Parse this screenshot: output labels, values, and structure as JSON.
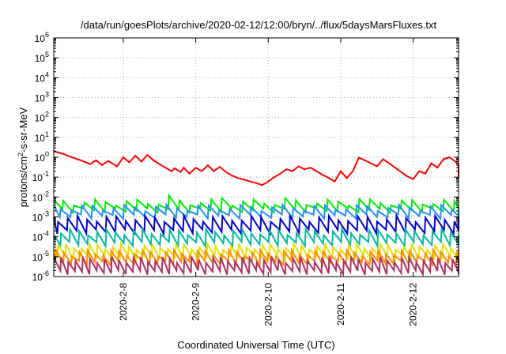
{
  "chart_data": {
    "type": "line",
    "title": "/data/run/goesPlots/archive/2020-02-12/12:00/bryn/../flux/5daysMarsFluxes.txt",
    "xlabel": "Coordinated Universal Time (UTC)",
    "ylabel": {
      "base": "protons/cm",
      "sup": "2",
      "rest": "-s-sr-MeV"
    },
    "x_range_days": [
      "2020-02-07T01:00",
      "2020-02-12T15:00"
    ],
    "x_ticks": [
      "2020-2-8",
      "2020-2-9",
      "2020-2-10",
      "2020-2-11",
      "2020-2-12"
    ],
    "x_tick_dates": [
      "2020-02-08",
      "2020-02-09",
      "2020-02-10",
      "2020-02-11",
      "2020-02-12"
    ],
    "y_scale": "log",
    "y_range": [
      1e-06,
      1000000.0
    ],
    "y_ticks": [
      {
        "base": "10",
        "exp": "6"
      },
      {
        "base": "10",
        "exp": "5"
      },
      {
        "base": "10",
        "exp": "4"
      },
      {
        "base": "10",
        "exp": "3"
      },
      {
        "base": "10",
        "exp": "2"
      },
      {
        "base": "10",
        "exp": "1"
      },
      {
        "base": "10",
        "exp": "0"
      },
      {
        "base": "10",
        "exp": "-1"
      },
      {
        "base": "10",
        "exp": "-2"
      },
      {
        "base": "10",
        "exp": "-3"
      },
      {
        "base": "10",
        "exp": "-4"
      },
      {
        "base": "10",
        "exp": "-5"
      },
      {
        "base": "10",
        "exp": "-6"
      }
    ],
    "grid": true,
    "series": [
      {
        "color": "#ff0000",
        "points": [
          [
            "2020-02-07T01:00",
            2.0
          ],
          [
            "2020-02-07T04:00",
            1.5
          ],
          [
            "2020-02-07T07:00",
            1.0
          ],
          [
            "2020-02-07T10:00",
            0.7
          ],
          [
            "2020-02-07T13:00",
            0.45
          ],
          [
            "2020-02-07T15:00",
            0.7
          ],
          [
            "2020-02-07T17:00",
            0.4
          ],
          [
            "2020-02-07T19:00",
            0.65
          ],
          [
            "2020-02-07T22:00",
            0.35
          ],
          [
            "2020-02-08T00:00",
            1.0
          ],
          [
            "2020-02-08T02:00",
            0.55
          ],
          [
            "2020-02-08T04:00",
            1.2
          ],
          [
            "2020-02-08T06:00",
            0.6
          ],
          [
            "2020-02-08T08:00",
            1.3
          ],
          [
            "2020-02-08T10:00",
            0.7
          ],
          [
            "2020-02-08T12:00",
            0.45
          ],
          [
            "2020-02-08T14:00",
            0.3
          ],
          [
            "2020-02-08T16:00",
            0.2
          ],
          [
            "2020-02-08T17:00",
            0.28
          ],
          [
            "2020-02-08T19:00",
            0.18
          ],
          [
            "2020-02-08T20:00",
            0.3
          ],
          [
            "2020-02-08T22:00",
            0.15
          ],
          [
            "2020-02-09T00:00",
            0.3
          ],
          [
            "2020-02-09T02:00",
            0.2
          ],
          [
            "2020-02-09T04:00",
            0.4
          ],
          [
            "2020-02-09T06:00",
            0.2
          ],
          [
            "2020-02-09T08:00",
            0.33
          ],
          [
            "2020-02-09T10:00",
            0.18
          ],
          [
            "2020-02-09T12:00",
            0.12
          ],
          [
            "2020-02-09T14:00",
            0.09
          ],
          [
            "2020-02-09T16:00",
            0.075
          ],
          [
            "2020-02-09T18:00",
            0.06
          ],
          [
            "2020-02-09T20:00",
            0.05
          ],
          [
            "2020-02-09T22:00",
            0.04
          ],
          [
            "2020-02-10T00:00",
            0.06
          ],
          [
            "2020-02-10T02:00",
            0.1
          ],
          [
            "2020-02-10T04:00",
            0.15
          ],
          [
            "2020-02-10T06:00",
            0.25
          ],
          [
            "2020-02-10T08:00",
            0.2
          ],
          [
            "2020-02-10T10:00",
            0.35
          ],
          [
            "2020-02-10T12:00",
            0.25
          ],
          [
            "2020-02-10T14:00",
            0.3
          ],
          [
            "2020-02-10T16:00",
            0.2
          ],
          [
            "2020-02-10T18:00",
            0.13
          ],
          [
            "2020-02-10T20:00",
            0.09
          ],
          [
            "2020-02-10T22:00",
            0.06
          ],
          [
            "2020-02-11T00:00",
            0.2
          ],
          [
            "2020-02-11T02:00",
            0.09
          ],
          [
            "2020-02-11T04:00",
            0.2
          ],
          [
            "2020-02-11T06:00",
            0.95
          ],
          [
            "2020-02-11T08:00",
            0.7
          ],
          [
            "2020-02-11T10:00",
            0.5
          ],
          [
            "2020-02-11T12:00",
            0.35
          ],
          [
            "2020-02-11T14:00",
            0.8
          ],
          [
            "2020-02-11T16:00",
            0.5
          ],
          [
            "2020-02-11T18:00",
            0.3
          ],
          [
            "2020-02-11T20:00",
            0.18
          ],
          [
            "2020-02-11T22:00",
            0.11
          ],
          [
            "2020-02-12T00:00",
            0.08
          ],
          [
            "2020-02-12T02:00",
            0.2
          ],
          [
            "2020-02-12T04:00",
            0.15
          ],
          [
            "2020-02-12T06:00",
            0.5
          ],
          [
            "2020-02-12T08:00",
            0.3
          ],
          [
            "2020-02-12T10:00",
            0.8
          ],
          [
            "2020-02-12T12:00",
            1.0
          ],
          [
            "2020-02-12T14:00",
            0.6
          ],
          [
            "2020-02-12T16:00",
            0.4
          ],
          [
            "2020-02-12T18:00",
            0.25
          ],
          [
            "2020-02-12T20:00",
            0.15
          ],
          [
            "2020-02-12T22:00",
            0.11
          ],
          [
            "2020-02-13T00:00",
            0.09
          ],
          [
            "2020-02-13T02:00",
            0.13
          ],
          [
            "2020-02-13T03:00",
            0.1
          ],
          [
            "2020-02-13T05:00",
            0.18
          ],
          [
            "2020-02-13T06:00",
            0.12
          ]
        ]
      },
      {
        "color": "#00ee00",
        "center": 0.0035,
        "spread": 2.6,
        "period_h": 3.5,
        "phase": 0.1,
        "spikes": [
          [
            "2020-02-08T15:00",
            0.012
          ],
          [
            "2020-02-09T09:00",
            0.009
          ],
          [
            "2020-02-10T04:00",
            0.009
          ],
          [
            "2020-02-11T05:00",
            0.008
          ],
          [
            "2020-02-13T05:00",
            0.012
          ]
        ]
      },
      {
        "color": "#1e90ff",
        "center": 0.0018,
        "spread": 2.8,
        "period_h": 3.5,
        "phase": 0.35,
        "spikes": []
      },
      {
        "color": "#0000dd",
        "center": 0.0004,
        "spread": 4.5,
        "period_h": 3.2,
        "phase": 0.55,
        "spikes": []
      },
      {
        "color": "#00bba0",
        "center": 9e-05,
        "spread": 4.0,
        "period_h": 3.0,
        "phase": 0.2,
        "spikes": []
      },
      {
        "color": "#e8e000",
        "center": 1.8e-05,
        "spread": 3.5,
        "period_h": 2.6,
        "phase": 0.45,
        "spikes": []
      },
      {
        "color": "#ff8c00",
        "center": 9e-06,
        "spread": 3.2,
        "period_h": 2.6,
        "phase": 0.7,
        "spikes": []
      },
      {
        "color": "#b03060",
        "center": 3.5e-06,
        "spread": 4.5,
        "period_h": 2.4,
        "phase": 0.0,
        "spikes": []
      }
    ]
  }
}
